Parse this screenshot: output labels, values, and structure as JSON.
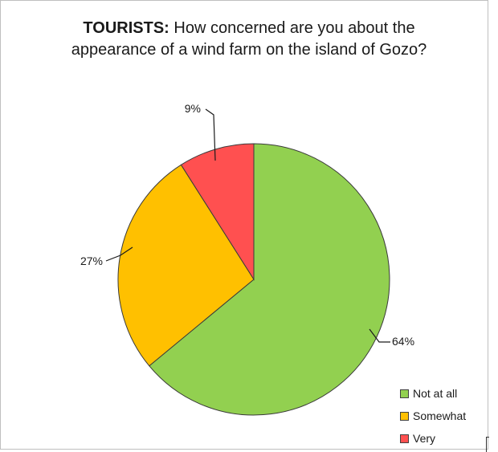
{
  "chart_data": {
    "type": "pie",
    "title_bold": "TOURISTS:",
    "title_rest_line1": " How concerned are you about the",
    "title_line2": "appearance of a wind farm on the island of Gozo?",
    "slices": [
      {
        "label": "Not at all",
        "value": 64,
        "data_label": "64%",
        "color": "#92d050"
      },
      {
        "label": "Somewhat",
        "value": 27,
        "data_label": "27%",
        "color": "#ffc000"
      },
      {
        "label": "Very",
        "value": 9,
        "data_label": "9%",
        "color": "#ff5050"
      }
    ],
    "legend_position": "bottom-right",
    "start_angle_deg": 0,
    "direction": "clockwise"
  }
}
